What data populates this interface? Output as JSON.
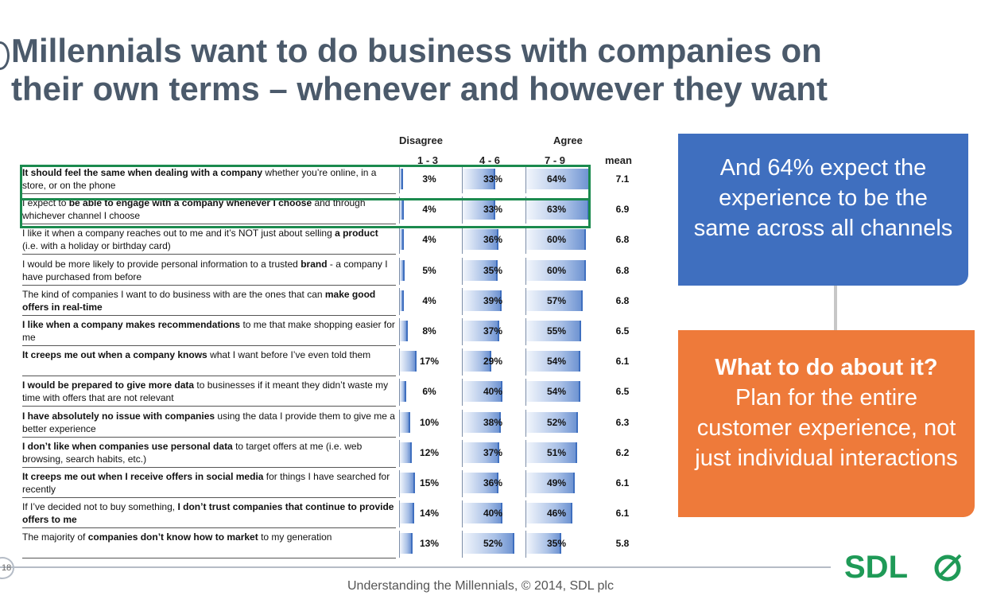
{
  "title": "Millennials want to do business with companies on their own terms – whenever and however they want",
  "callout_blue": "And 64% expect the experience to be the same across all channels",
  "callout_orange": {
    "head": "What to do about it?",
    "body": "Plan for the entire customer experience, not just individual interactions"
  },
  "footer": "Understanding the Millennials, © 2014, SDL plc",
  "page_number": "18",
  "logo_text": "SDL",
  "colors": {
    "title": "#4b5a6b",
    "accent_blue": "#3f6fbf",
    "accent_orange": "#ee7a3a",
    "highlight_green": "#1b8a4e"
  },
  "chart_data": {
    "type": "bar",
    "column_headers": {
      "group_disagree": "Disagree",
      "group_agree": "Agree",
      "col1": "1 - 3",
      "col2": "4 - 6",
      "col3": "7 - 9",
      "mean": "mean"
    },
    "series": [
      {
        "name": "1 - 3",
        "values": [
          3,
          4,
          4,
          5,
          4,
          8,
          17,
          6,
          10,
          12,
          15,
          14,
          13
        ]
      },
      {
        "name": "4 - 6",
        "values": [
          33,
          33,
          36,
          35,
          39,
          37,
          29,
          40,
          38,
          37,
          36,
          40,
          52
        ]
      },
      {
        "name": "7 - 9",
        "values": [
          64,
          63,
          60,
          60,
          57,
          55,
          54,
          54,
          52,
          51,
          49,
          46,
          35
        ]
      }
    ],
    "means": [
      "7.1",
      "6.9",
      "6.8",
      "6.8",
      "6.8",
      "6.5",
      "6.1",
      "6.5",
      "6.3",
      "6.2",
      "6.1",
      "6.1",
      "5.8"
    ],
    "rows": [
      {
        "bold": "It should feel the same when dealing with a company",
        "rest": " whether you’re online, in a store, or on the phone",
        "c1": "3%",
        "c2": "33%",
        "c3": "64%",
        "mean": "7.1"
      },
      {
        "pre": "I expect to ",
        "bold": "be able to engage with a company whenever I choose",
        "rest": " and through whichever channel I choose",
        "c1": "4%",
        "c2": "33%",
        "c3": "63%",
        "mean": "6.9"
      },
      {
        "pre": "I like it when a company reaches out to me and it’s NOT just about selling ",
        "bold": "a product",
        "rest": " (i.e. with a holiday or birthday card)",
        "c1": "4%",
        "c2": "36%",
        "c3": "60%",
        "mean": "6.8"
      },
      {
        "pre": "I would be more likely to provide personal information to a trusted ",
        "bold": "brand",
        "rest": " - a company I have purchased from before",
        "c1": "5%",
        "c2": "35%",
        "c3": "60%",
        "mean": "6.8"
      },
      {
        "pre": "The kind of companies I want to do business with are the ones that can ",
        "bold": "make good offers in real-time",
        "rest": "",
        "c1": "4%",
        "c2": "39%",
        "c3": "57%",
        "mean": "6.8"
      },
      {
        "bold": "I like when a company makes recommendations",
        "rest": " to me that make shopping easier for me",
        "c1": "8%",
        "c2": "37%",
        "c3": "55%",
        "mean": "6.5"
      },
      {
        "bold": "It creeps me out when a company knows",
        "rest": " what I want before I’ve even told them",
        "c1": "17%",
        "c2": "29%",
        "c3": "54%",
        "mean": "6.1"
      },
      {
        "bold": "I would be prepared to give more data",
        "rest": " to businesses if it meant they didn’t waste my time with offers that are not relevant",
        "c1": "6%",
        "c2": "40%",
        "c3": "54%",
        "mean": "6.5"
      },
      {
        "bold": "I have absolutely no issue with companies",
        "rest": " using the data I provide them to give me a better experience",
        "c1": "10%",
        "c2": "38%",
        "c3": "52%",
        "mean": "6.3"
      },
      {
        "bold": "I don’t like when companies use personal data",
        "rest": " to target offers at me (i.e. web browsing, search habits, etc.)",
        "c1": "12%",
        "c2": "37%",
        "c3": "51%",
        "mean": "6.2"
      },
      {
        "bold": "It creeps me out when I receive offers in social media",
        "rest": " for things I have searched for recently",
        "c1": "15%",
        "c2": "36%",
        "c3": "49%",
        "mean": "6.1"
      },
      {
        "pre": "If I’ve decided not to buy something, ",
        "bold": "I don’t trust companies that continue to provide offers to me",
        "rest": "",
        "c1": "14%",
        "c2": "40%",
        "c3": "46%",
        "mean": "6.1"
      },
      {
        "pre": "The majority of ",
        "bold": "companies don’t know how to market",
        "rest": " to my generation",
        "c1": "13%",
        "c2": "52%",
        "c3": "35%",
        "mean": "5.8"
      }
    ]
  }
}
